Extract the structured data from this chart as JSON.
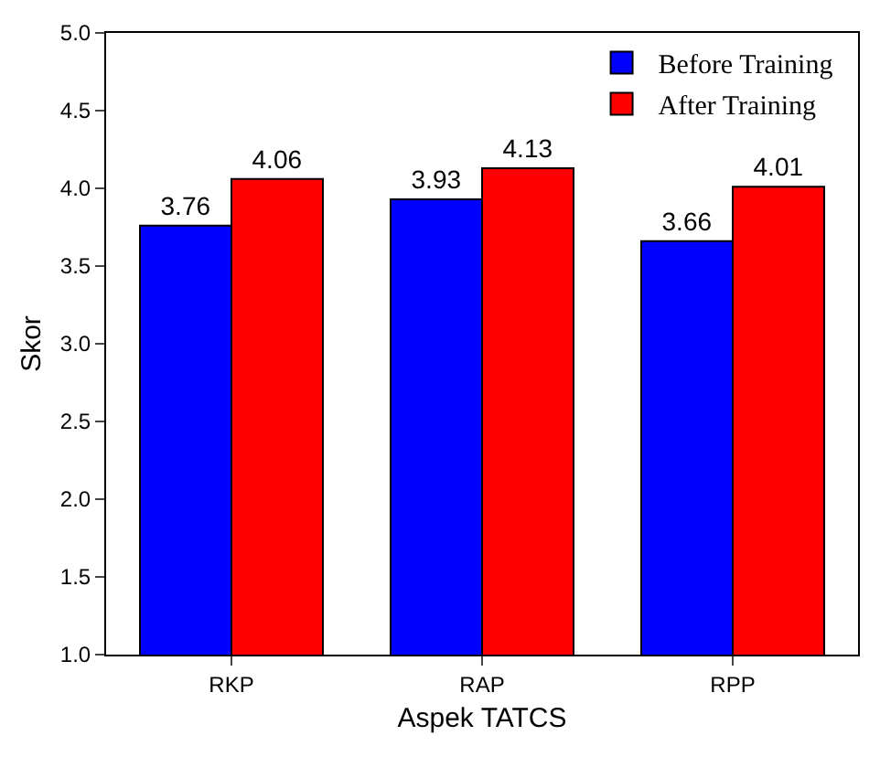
{
  "chart_data": {
    "type": "bar",
    "xlabel": "Aspek TATCS",
    "ylabel": "Skor",
    "categories": [
      "RKP",
      "RAP",
      "RPP"
    ],
    "series": [
      {
        "name": "Before Training",
        "color": "#0000ff",
        "values": [
          3.76,
          3.93,
          3.66
        ]
      },
      {
        "name": "After Training",
        "color": "#ff0000",
        "values": [
          4.06,
          4.13,
          4.01
        ]
      }
    ],
    "ylim": [
      1.0,
      5.0
    ],
    "yticks": [
      {
        "value": 1,
        "label": "1.0"
      },
      {
        "value": 1.5,
        "label": "1.5"
      },
      {
        "value": 2,
        "label": "2.0"
      },
      {
        "value": 2.5,
        "label": "2.5"
      },
      {
        "value": 3,
        "label": "3.0"
      },
      {
        "value": 3.5,
        "label": "3.5"
      },
      {
        "value": 4,
        "label": "4.0"
      },
      {
        "value": 4.5,
        "label": "4.5"
      },
      {
        "value": 5,
        "label": "5.0"
      }
    ],
    "data_labels": true,
    "legend": "top right"
  }
}
